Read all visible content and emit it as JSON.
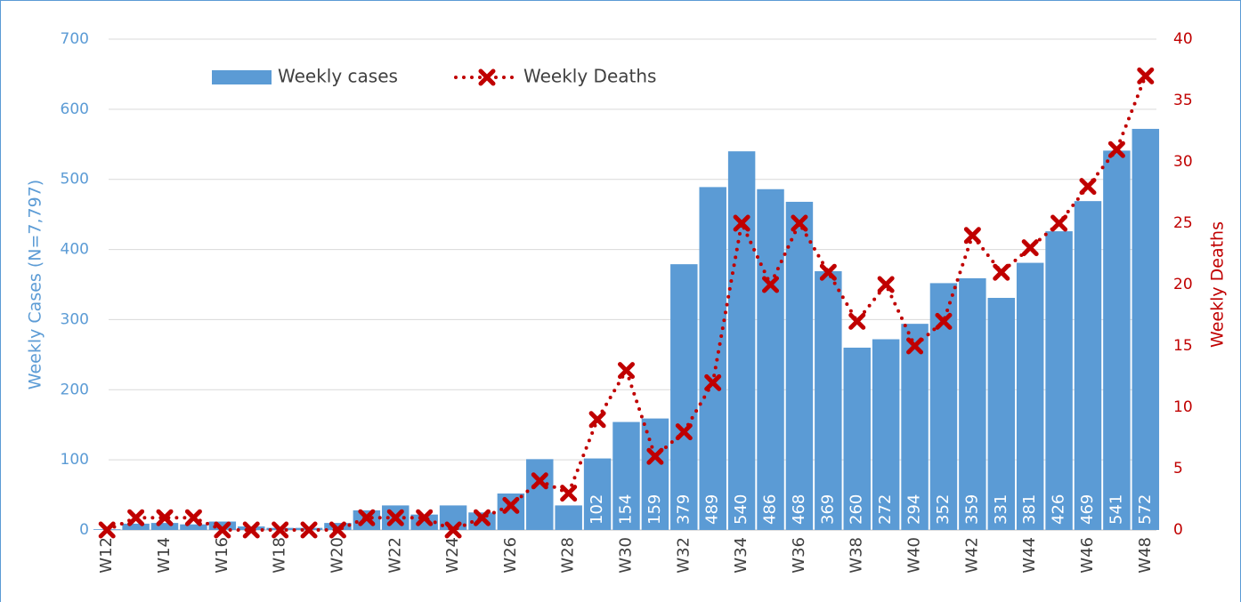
{
  "chart_data": {
    "type": "bar",
    "categories": [
      "W12",
      null,
      "W14",
      null,
      "W16",
      null,
      "W18",
      null,
      "W20",
      null,
      "W22",
      null,
      "W24",
      null,
      "W26",
      null,
      "W28",
      null,
      "W30",
      null,
      "W32",
      null,
      "W34",
      null,
      "W36",
      null,
      "W38",
      null,
      "W40",
      null,
      "W42",
      null,
      "W44",
      null,
      "W46",
      null,
      "W48"
    ],
    "series": [
      {
        "name": "Weekly cases",
        "type": "bar",
        "color": "#5b9bd5",
        "values": [
          1,
          9,
          10,
          8,
          12,
          5,
          3,
          3,
          10,
          28,
          35,
          22,
          35,
          25,
          52,
          101,
          35,
          102,
          154,
          159,
          379,
          489,
          540,
          486,
          468,
          369,
          260,
          272,
          294,
          352,
          359,
          331,
          381,
          426,
          469,
          541,
          572
        ],
        "value_labels": [
          null,
          null,
          null,
          null,
          null,
          null,
          null,
          null,
          null,
          null,
          null,
          null,
          null,
          null,
          null,
          null,
          null,
          "102",
          "154",
          "159",
          "379",
          "489",
          "540",
          "486",
          "468",
          "369",
          "260",
          "272",
          "294",
          "352",
          "359",
          "331",
          "381",
          "426",
          "469",
          "541",
          "572"
        ]
      },
      {
        "name": "Weekly Deaths",
        "type": "line",
        "axis": "y2",
        "color": "#c00000",
        "values": [
          0,
          1,
          1,
          1,
          0,
          0,
          0,
          0,
          0,
          1,
          1,
          1,
          0,
          1,
          2,
          4,
          3,
          9,
          13,
          6,
          8,
          12,
          25,
          20,
          25,
          21,
          17,
          20,
          15,
          17,
          24,
          21,
          23,
          25,
          28,
          31,
          37
        ]
      }
    ],
    "ylabel": "Weekly Cases (N=7,797)",
    "y2label": "Weekly Deaths",
    "ylim": [
      0,
      700
    ],
    "yticks": [
      0,
      100,
      200,
      300,
      400,
      500,
      600,
      700
    ],
    "y2lim": [
      0,
      40
    ],
    "y2ticks": [
      0,
      5,
      10,
      15,
      20,
      25,
      30,
      35,
      40
    ],
    "grid": true,
    "legend": "upper left"
  }
}
